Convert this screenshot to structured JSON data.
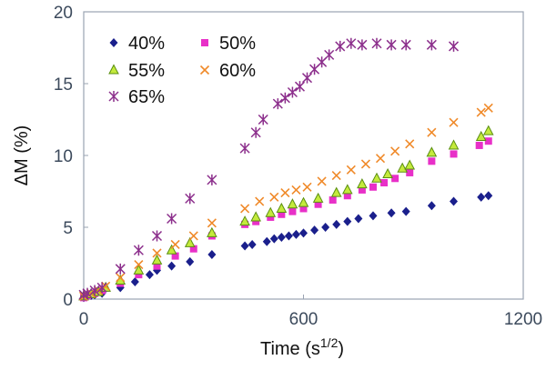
{
  "chart_data": {
    "type": "scatter",
    "xlabel": "Time (s1/2)",
    "xlabel_main": "Time (s",
    "xlabel_sup": "1/2",
    "xlabel_close": ")",
    "ylabel": "ΔM (%)",
    "xlim": [
      0,
      1200
    ],
    "ylim": [
      0,
      20
    ],
    "x_ticks": [
      0,
      600,
      1200
    ],
    "y_ticks": [
      0,
      5,
      10,
      15,
      20
    ],
    "x_tick_labels": [
      "0",
      "600",
      "1200"
    ],
    "y_tick_labels": [
      "0",
      "5",
      "10",
      "15",
      "20"
    ],
    "grid": false,
    "legend_placement": "top-left, two columns",
    "series": [
      {
        "name": "40%",
        "marker": "diamond",
        "color": "#1a1f8c",
        "points": [
          [
            0,
            0.1
          ],
          [
            10,
            0.2
          ],
          [
            20,
            0.25
          ],
          [
            30,
            0.3
          ],
          [
            50,
            0.4
          ],
          [
            100,
            0.8
          ],
          [
            140,
            1.2
          ],
          [
            180,
            1.7
          ],
          [
            200,
            2.0
          ],
          [
            240,
            2.3
          ],
          [
            290,
            2.6
          ],
          [
            350,
            3.1
          ],
          [
            440,
            3.7
          ],
          [
            460,
            3.8
          ],
          [
            500,
            4.0
          ],
          [
            520,
            4.2
          ],
          [
            540,
            4.3
          ],
          [
            560,
            4.4
          ],
          [
            580,
            4.5
          ],
          [
            600,
            4.6
          ],
          [
            630,
            4.8
          ],
          [
            660,
            5.0
          ],
          [
            690,
            5.2
          ],
          [
            720,
            5.4
          ],
          [
            750,
            5.6
          ],
          [
            790,
            5.8
          ],
          [
            840,
            6.0
          ],
          [
            880,
            6.1
          ],
          [
            950,
            6.5
          ],
          [
            1010,
            6.8
          ],
          [
            1085,
            7.1
          ],
          [
            1105,
            7.2
          ]
        ]
      },
      {
        "name": "50%",
        "marker": "square",
        "color": "#e830c8",
        "points": [
          [
            0,
            0.1
          ],
          [
            10,
            0.25
          ],
          [
            30,
            0.4
          ],
          [
            50,
            0.6
          ],
          [
            100,
            1.1
          ],
          [
            150,
            1.7
          ],
          [
            200,
            2.3
          ],
          [
            250,
            3.0
          ],
          [
            300,
            3.5
          ],
          [
            350,
            4.4
          ],
          [
            440,
            5.2
          ],
          [
            470,
            5.4
          ],
          [
            510,
            5.7
          ],
          [
            540,
            5.9
          ],
          [
            570,
            6.1
          ],
          [
            600,
            6.3
          ],
          [
            640,
            6.6
          ],
          [
            680,
            6.9
          ],
          [
            720,
            7.2
          ],
          [
            760,
            7.6
          ],
          [
            790,
            7.8
          ],
          [
            820,
            8.1
          ],
          [
            850,
            8.4
          ],
          [
            890,
            8.8
          ],
          [
            950,
            9.6
          ],
          [
            1010,
            10.1
          ],
          [
            1080,
            10.7
          ],
          [
            1105,
            11.0
          ]
        ]
      },
      {
        "name": "55%",
        "marker": "triangle",
        "color": "#5a8f10",
        "fill": "#c4ea3c",
        "points": [
          [
            0,
            0.2
          ],
          [
            20,
            0.35
          ],
          [
            40,
            0.5
          ],
          [
            60,
            0.8
          ],
          [
            100,
            1.3
          ],
          [
            150,
            2.0
          ],
          [
            200,
            2.7
          ],
          [
            240,
            3.4
          ],
          [
            290,
            3.9
          ],
          [
            350,
            4.6
          ],
          [
            440,
            5.4
          ],
          [
            470,
            5.7
          ],
          [
            510,
            6.0
          ],
          [
            540,
            6.3
          ],
          [
            570,
            6.6
          ],
          [
            600,
            6.7
          ],
          [
            640,
            7.0
          ],
          [
            690,
            7.4
          ],
          [
            720,
            7.6
          ],
          [
            760,
            8.0
          ],
          [
            800,
            8.4
          ],
          [
            830,
            8.7
          ],
          [
            870,
            9.1
          ],
          [
            890,
            9.3
          ],
          [
            950,
            10.2
          ],
          [
            1010,
            10.7
          ],
          [
            1085,
            11.3
          ],
          [
            1105,
            11.7
          ]
        ]
      },
      {
        "name": "60%",
        "marker": "x",
        "color": "#f08a2a",
        "points": [
          [
            0,
            0.2
          ],
          [
            20,
            0.4
          ],
          [
            40,
            0.6
          ],
          [
            60,
            0.9
          ],
          [
            100,
            1.5
          ],
          [
            150,
            2.4
          ],
          [
            200,
            3.2
          ],
          [
            250,
            3.8
          ],
          [
            300,
            4.4
          ],
          [
            350,
            5.3
          ],
          [
            440,
            6.3
          ],
          [
            480,
            6.8
          ],
          [
            520,
            7.1
          ],
          [
            550,
            7.4
          ],
          [
            580,
            7.6
          ],
          [
            610,
            7.8
          ],
          [
            650,
            8.2
          ],
          [
            690,
            8.6
          ],
          [
            730,
            9.0
          ],
          [
            770,
            9.4
          ],
          [
            810,
            9.8
          ],
          [
            850,
            10.3
          ],
          [
            890,
            10.8
          ],
          [
            950,
            11.6
          ],
          [
            1010,
            12.3
          ],
          [
            1085,
            13.0
          ],
          [
            1105,
            13.3
          ]
        ]
      },
      {
        "name": "65%",
        "marker": "star",
        "color": "#8c2f8c",
        "points": [
          [
            0,
            0.3
          ],
          [
            10,
            0.4
          ],
          [
            30,
            0.6
          ],
          [
            50,
            0.8
          ],
          [
            100,
            2.1
          ],
          [
            150,
            3.4
          ],
          [
            200,
            4.4
          ],
          [
            240,
            5.6
          ],
          [
            290,
            7.0
          ],
          [
            350,
            8.3
          ],
          [
            440,
            10.5
          ],
          [
            470,
            11.6
          ],
          [
            490,
            12.5
          ],
          [
            530,
            13.6
          ],
          [
            550,
            14.0
          ],
          [
            570,
            14.4
          ],
          [
            590,
            14.8
          ],
          [
            610,
            15.4
          ],
          [
            630,
            16.0
          ],
          [
            650,
            16.5
          ],
          [
            670,
            17.0
          ],
          [
            700,
            17.6
          ],
          [
            730,
            17.8
          ],
          [
            760,
            17.7
          ],
          [
            800,
            17.8
          ],
          [
            840,
            17.7
          ],
          [
            880,
            17.7
          ],
          [
            950,
            17.7
          ],
          [
            1010,
            17.6
          ]
        ]
      }
    ]
  }
}
